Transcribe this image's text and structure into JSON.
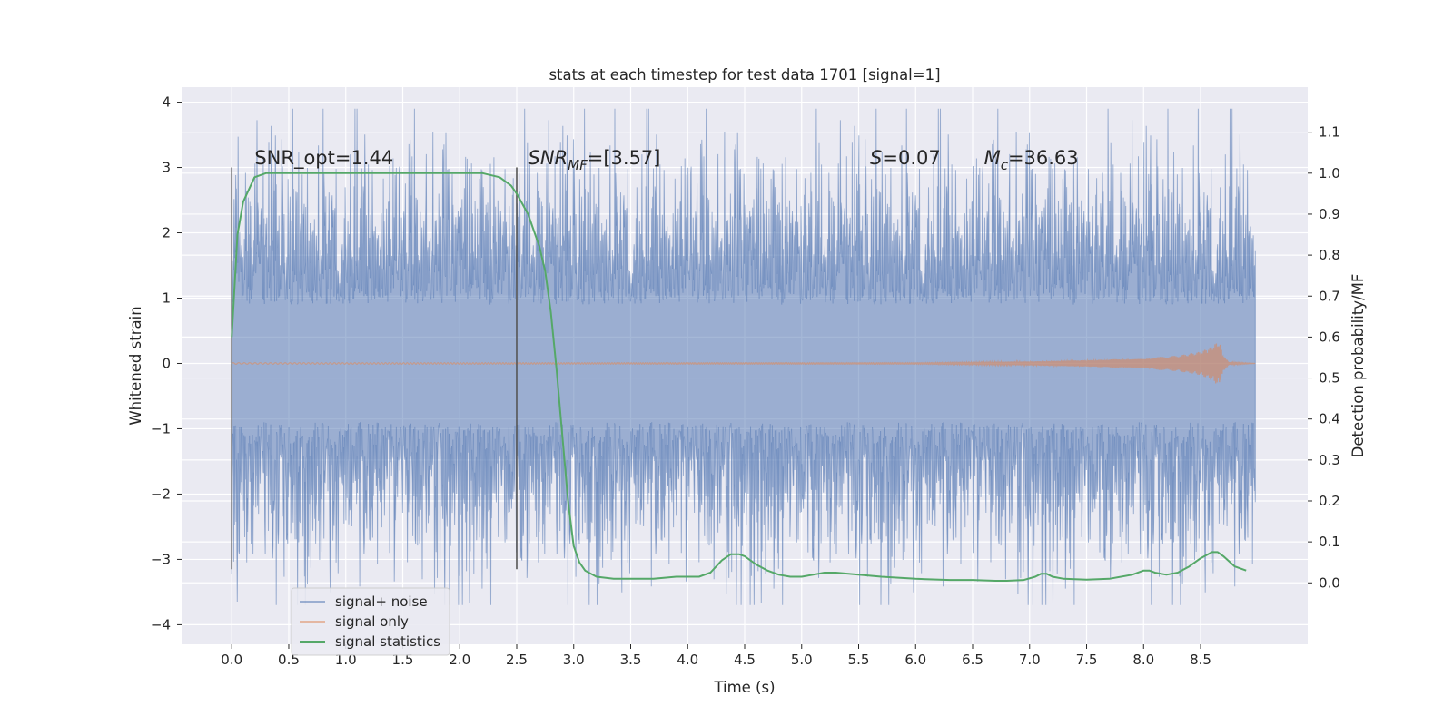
{
  "chart_data": {
    "type": "line",
    "title": "stats at each timestep for test data 1701 [signal=1]",
    "xlabel": "Time (s)",
    "ylabel": "Whitened strain",
    "y2label": "Detection probability/MF",
    "xlim": [
      -0.44,
      9.44
    ],
    "ylim": [
      -4.3,
      4.23
    ],
    "y2lim": [
      -0.15,
      1.21
    ],
    "xticks": [
      "0.0",
      "0.5",
      "1.0",
      "1.5",
      "2.0",
      "2.5",
      "3.0",
      "3.5",
      "4.0",
      "4.5",
      "5.0",
      "5.5",
      "6.0",
      "6.5",
      "7.0",
      "7.5",
      "8.0",
      "8.5"
    ],
    "xtick_values": [
      0,
      0.5,
      1,
      1.5,
      2,
      2.5,
      3,
      3.5,
      4,
      4.5,
      5,
      5.5,
      6,
      6.5,
      7,
      7.5,
      8,
      8.5
    ],
    "yticks": [
      "−4",
      "−3",
      "−2",
      "−1",
      "0",
      "1",
      "2",
      "3",
      "4"
    ],
    "ytick_values": [
      -4,
      -3,
      -2,
      -1,
      0,
      1,
      2,
      3,
      4
    ],
    "y2ticks": [
      "0.0",
      "0.1",
      "0.2",
      "0.3",
      "0.4",
      "0.5",
      "0.6",
      "0.7",
      "0.8",
      "0.9",
      "1.0",
      "1.1"
    ],
    "y2tick_values": [
      0,
      0.1,
      0.2,
      0.3,
      0.4,
      0.5,
      0.6,
      0.7,
      0.8,
      0.9,
      1.0,
      1.1
    ],
    "grid": true,
    "legend_position": "lower-left",
    "series": [
      {
        "name": "signal+ noise",
        "color": "#4c72b0",
        "axis": "left",
        "t_start": 0.0,
        "t_end": 8.98,
        "envelope": [
          [
            -2.6,
            2.6
          ]
        ]
      },
      {
        "name": "signal only",
        "color": "#dd8452",
        "axis": "left",
        "x": [
          0.0,
          6.0,
          7.0,
          7.5,
          8.0,
          8.3,
          8.5,
          8.6,
          8.65,
          8.67,
          8.7,
          8.75,
          8.98
        ],
        "amplitude": [
          0.01,
          0.01,
          0.03,
          0.05,
          0.08,
          0.12,
          0.18,
          0.26,
          0.33,
          0.3,
          0.12,
          0.02,
          0.0
        ]
      },
      {
        "name": "signal statistics",
        "color": "#55a868",
        "axis": "right",
        "x": [
          0.0,
          0.05,
          0.1,
          0.15,
          0.2,
          0.3,
          0.5,
          1.0,
          1.5,
          2.0,
          2.2,
          2.35,
          2.45,
          2.5,
          2.6,
          2.7,
          2.75,
          2.8,
          2.85,
          2.9,
          2.95,
          3.0,
          3.05,
          3.1,
          3.2,
          3.35,
          3.5,
          3.7,
          3.9,
          4.1,
          4.2,
          4.3,
          4.38,
          4.45,
          4.5,
          4.6,
          4.7,
          4.8,
          4.9,
          5.0,
          5.1,
          5.2,
          5.3,
          5.5,
          5.7,
          6.0,
          6.3,
          6.5,
          6.7,
          6.8,
          6.95,
          7.05,
          7.1,
          7.15,
          7.2,
          7.3,
          7.5,
          7.7,
          7.9,
          8.0,
          8.05,
          8.1,
          8.2,
          8.3,
          8.4,
          8.5,
          8.6,
          8.65,
          8.7,
          8.8,
          8.9
        ],
        "y": [
          0.6,
          0.85,
          0.93,
          0.96,
          0.99,
          1.0,
          1.0,
          1.0,
          1.0,
          1.0,
          1.0,
          0.99,
          0.97,
          0.95,
          0.9,
          0.82,
          0.76,
          0.66,
          0.52,
          0.36,
          0.2,
          0.09,
          0.05,
          0.03,
          0.015,
          0.01,
          0.01,
          0.01,
          0.015,
          0.015,
          0.025,
          0.055,
          0.07,
          0.07,
          0.065,
          0.045,
          0.03,
          0.02,
          0.015,
          0.015,
          0.02,
          0.025,
          0.025,
          0.02,
          0.015,
          0.01,
          0.007,
          0.007,
          0.005,
          0.005,
          0.007,
          0.015,
          0.022,
          0.022,
          0.015,
          0.01,
          0.008,
          0.01,
          0.02,
          0.03,
          0.03,
          0.025,
          0.02,
          0.025,
          0.04,
          0.06,
          0.075,
          0.075,
          0.065,
          0.04,
          0.03
        ]
      }
    ],
    "vlines": [
      {
        "x": 0.0,
        "ymin": -3.15,
        "ymax": 3.0,
        "color": "#555555"
      },
      {
        "x": 2.5,
        "ymin": -3.15,
        "ymax": 3.0,
        "color": "#555555"
      }
    ],
    "annotations": [
      {
        "x": 0.2,
        "y": 3.05,
        "parts": [
          {
            "text": "SNR_opt=1.44",
            "style": "normal"
          }
        ]
      },
      {
        "x": 2.6,
        "y": 3.05,
        "parts": [
          {
            "text": "SNR",
            "style": "italic"
          },
          {
            "text": "MF",
            "style": "italic-sub"
          },
          {
            "text": "=[3.57]",
            "style": "normal"
          }
        ]
      },
      {
        "x": 5.6,
        "y": 3.05,
        "parts": [
          {
            "text": "S",
            "style": "italic"
          },
          {
            "text": "=0.07",
            "style": "normal"
          }
        ]
      },
      {
        "x": 6.6,
        "y": 3.05,
        "parts": [
          {
            "text": "M",
            "style": "italic"
          },
          {
            "text": "c",
            "style": "italic-sub"
          },
          {
            "text": "=36.63",
            "style": "normal"
          }
        ]
      }
    ]
  }
}
